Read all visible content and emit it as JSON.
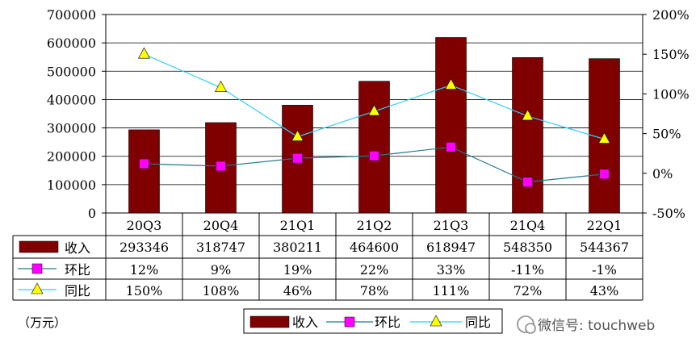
{
  "chart_data": {
    "type": "bar",
    "categories": [
      "20Q3",
      "20Q4",
      "21Q1",
      "21Q2",
      "21Q3",
      "21Q4",
      "22Q1"
    ],
    "ylim": [
      0,
      700000
    ],
    "y_ticks": [
      "0",
      "100000",
      "200000",
      "300000",
      "400000",
      "500000",
      "600000",
      "700000"
    ],
    "y2lim": [
      -50,
      200
    ],
    "y2_ticks": [
      "-50%",
      "0%",
      "50%",
      "100%",
      "150%",
      "200%"
    ],
    "unit_label": "（万元）",
    "grid": true,
    "legend_position": "bottom-center",
    "series": [
      {
        "name": "收入",
        "type": "bar",
        "axis": "left",
        "color": "#800000",
        "values": [
          293346,
          318747,
          380211,
          464600,
          618947,
          548350,
          544367
        ],
        "labels": [
          "293346",
          "318747",
          "380211",
          "464600",
          "618947",
          "548350",
          "544367"
        ]
      },
      {
        "name": "环比",
        "type": "line",
        "axis": "right",
        "color": "#ff00ff",
        "line_color": "#1f7a8c",
        "marker": "square",
        "values": [
          12,
          9,
          19,
          22,
          33,
          -11,
          -1
        ],
        "labels": [
          "12%",
          "9%",
          "19%",
          "22%",
          "33%",
          "-11%",
          "-1%"
        ]
      },
      {
        "name": "同比",
        "type": "line",
        "axis": "right",
        "color": "#ffff00",
        "line_color": "#33ccff",
        "marker": "triangle",
        "values": [
          150,
          108,
          46,
          78,
          111,
          72,
          43
        ],
        "labels": [
          "150%",
          "108%",
          "46%",
          "78%",
          "111%",
          "72%",
          "43%"
        ]
      }
    ]
  },
  "watermark": {
    "icon": "wechat-icon",
    "text": "微信号: touchweb"
  }
}
